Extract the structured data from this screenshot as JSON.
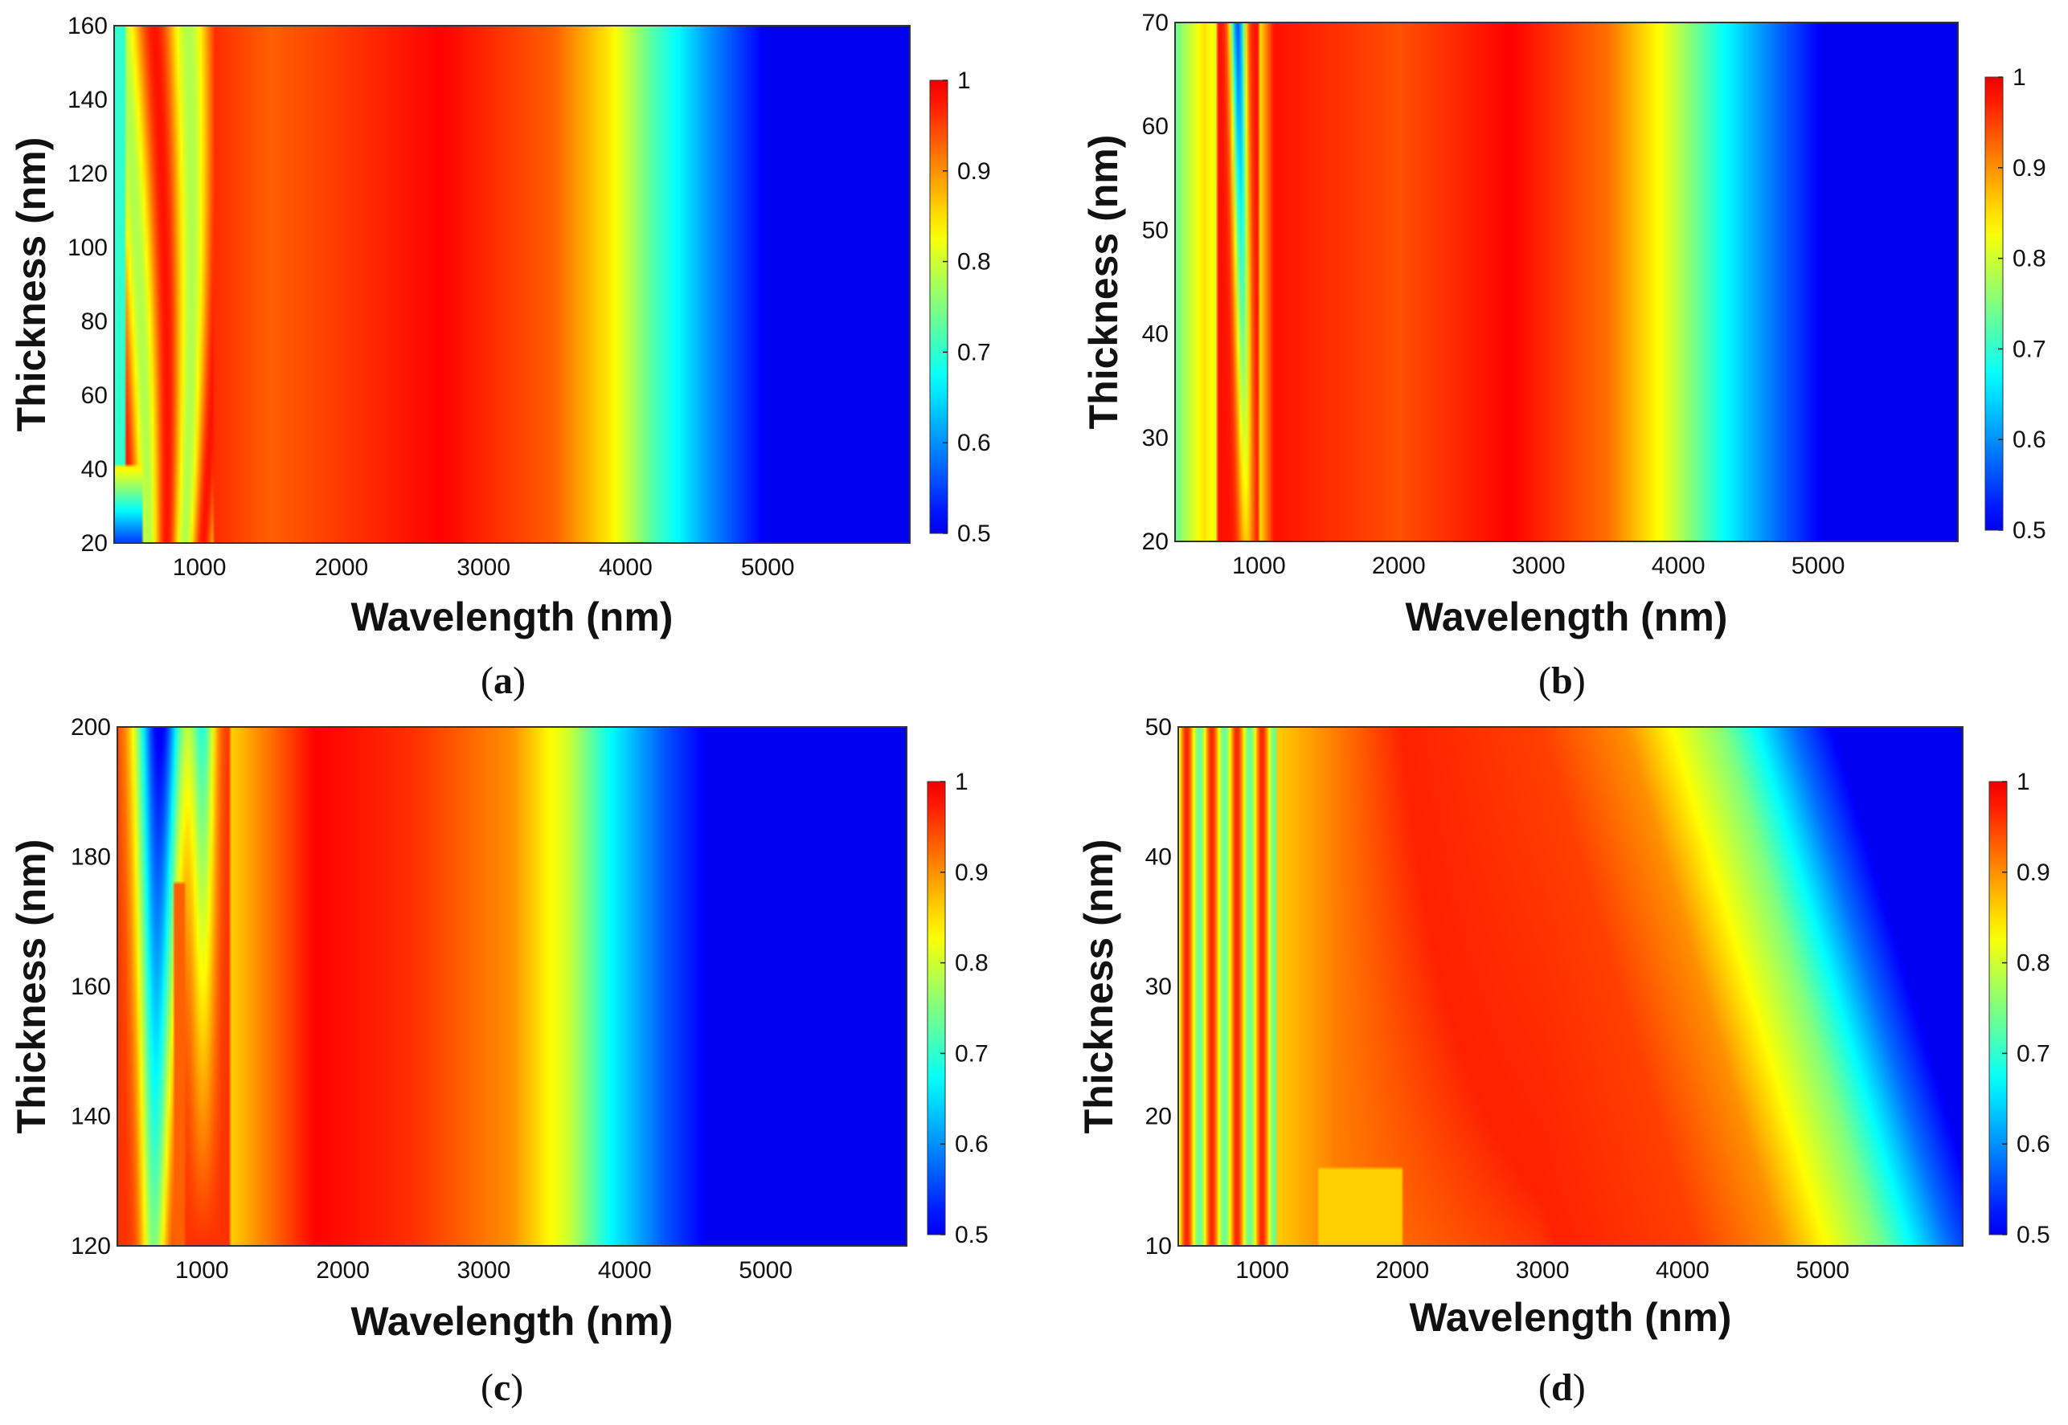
{
  "chart_data": [
    {
      "type": "heatmap",
      "panel": "a",
      "caption_letter": "a",
      "xlabel": "Wavelength (nm)",
      "ylabel": "Thickness (nm)",
      "xlim": [
        400,
        6000
      ],
      "ylim": [
        20,
        160
      ],
      "xticks": [
        "1000",
        "2000",
        "3000",
        "4000",
        "5000"
      ],
      "yticks": [
        "20",
        "40",
        "60",
        "80",
        "100",
        "120",
        "140",
        "160"
      ],
      "colorbar": {
        "min": 0.5,
        "max": 1,
        "ticks": [
          "0.5",
          "0.6",
          "0.7",
          "0.8",
          "0.9",
          "1"
        ],
        "colormap": "jet"
      },
      "value_description": "Absorption; ~0.95-1 from ~1000 to ~3500 nm (peak near 2700 nm), drop to 0.5 between ~4000 and ~5000 nm, oscillations below 1000 nm varying with thickness",
      "profile": {
        "wavelength": [
          400,
          600,
          1000,
          1500,
          2700,
          3500,
          3900,
          4200,
          4600,
          5000,
          6000
        ],
        "value": [
          0.78,
          0.85,
          0.97,
          0.93,
          0.99,
          0.93,
          0.84,
          0.72,
          0.6,
          0.5,
          0.5
        ]
      }
    },
    {
      "type": "heatmap",
      "panel": "b",
      "caption_letter": "b",
      "xlabel": "Wavelength (nm)",
      "ylabel": "Thickness (nm)",
      "xlim": [
        400,
        6000
      ],
      "ylim": [
        20,
        70
      ],
      "xticks": [
        "1000",
        "2000",
        "3000",
        "4000",
        "5000"
      ],
      "yticks": [
        "20",
        "30",
        "40",
        "50",
        "60",
        "70"
      ],
      "colorbar": {
        "min": 0.5,
        "max": 1,
        "ticks": [
          "0.5",
          "0.6",
          "0.7",
          "0.8",
          "0.9",
          "1"
        ],
        "colormap": "jet"
      },
      "value_description": "Absorption; near-uniform in thickness, high 1000-3500 nm, decreasing to 0.5 by ~5000 nm",
      "profile": {
        "wavelength": [
          400,
          600,
          900,
          1100,
          2000,
          2800,
          3500,
          3900,
          4300,
          4700,
          5050,
          6000
        ],
        "value": [
          0.74,
          0.85,
          0.72,
          0.98,
          0.94,
          0.99,
          0.92,
          0.82,
          0.68,
          0.58,
          0.5,
          0.5
        ]
      }
    },
    {
      "type": "heatmap",
      "panel": "c",
      "caption_letter": "c",
      "xlabel": "Wavelength (nm)",
      "ylabel": "Thickness (nm)",
      "xlim": [
        400,
        6000
      ],
      "ylim": [
        120,
        200
      ],
      "xticks": [
        "1000",
        "2000",
        "3000",
        "4000",
        "5000"
      ],
      "yticks": [
        "120",
        "140",
        "160",
        "180",
        "200"
      ],
      "colorbar": {
        "min": 0.5,
        "max": 1,
        "ticks": [
          "0.5",
          "0.6",
          "0.7",
          "0.8",
          "0.9",
          "1"
        ],
        "colormap": "jet"
      },
      "value_description": "Absorption; low-absorption pockets near 600-900 nm for thick films, high band ~1500-3000 nm, drop to 0.5 by ~4500 nm",
      "profile": {
        "wavelength": [
          400,
          700,
          850,
          1200,
          1800,
          2500,
          3200,
          3600,
          3900,
          4300,
          4600,
          6000
        ],
        "value": [
          0.9,
          0.62,
          0.88,
          0.86,
          0.99,
          0.96,
          0.9,
          0.8,
          0.67,
          0.56,
          0.5,
          0.5
        ]
      }
    },
    {
      "type": "heatmap",
      "panel": "d",
      "caption_letter": "d",
      "xlabel": "Wavelength (nm)",
      "ylabel": "Thickness (nm)",
      "xlim": [
        400,
        6000
      ],
      "ylim": [
        10,
        50
      ],
      "xticks": [
        "1000",
        "2000",
        "3000",
        "4000",
        "5000"
      ],
      "yticks": [
        "10",
        "20",
        "30",
        "40",
        "50"
      ],
      "colorbar": {
        "min": 0.5,
        "max": 1,
        "ticks": [
          "0.5",
          "0.6",
          "0.7",
          "0.8",
          "0.9",
          "1"
        ],
        "colormap": "jet"
      },
      "value_description": "Absorption; high-absorption region widens with decreasing thickness: cutoff at ~3000-4000 nm for 50 nm thickness, ~4300-5100 nm for 10 nm",
      "profile": {
        "wavelength": [
          400,
          700,
          1000,
          2000,
          3000,
          3600,
          4300,
          4800,
          5100,
          6000
        ],
        "value": [
          0.8,
          0.9,
          0.85,
          0.97,
          0.95,
          0.9,
          0.75,
          0.58,
          0.5,
          0.5
        ]
      }
    }
  ]
}
